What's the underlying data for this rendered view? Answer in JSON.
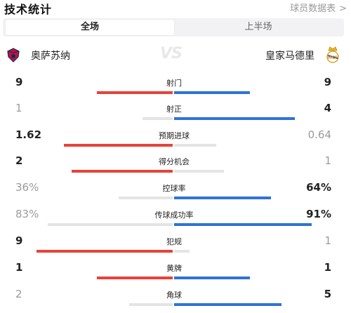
{
  "header": {
    "title": "技术统计",
    "link": "球员数据表",
    "link_arrow": ">"
  },
  "tabs": [
    {
      "label": "全场",
      "active": true
    },
    {
      "label": "上半场",
      "active": false
    }
  ],
  "teams": {
    "home": {
      "name": "奥萨苏纳",
      "logo_icon": "osasuna-crest-icon"
    },
    "vs": "VS",
    "away": {
      "name": "皇家马德里",
      "logo_icon": "real-madrid-crest-icon"
    }
  },
  "colors": {
    "home_bar": "#e8423a",
    "away_bar": "#2f73d6",
    "muted_bar": "#e4e4e6"
  },
  "stats": [
    {
      "label": "射门",
      "home": "9",
      "away": "9",
      "home_share": 0.5,
      "away_share": 0.5,
      "leader": "both"
    },
    {
      "label": "射正",
      "home": "1",
      "away": "4",
      "home_share": 0.2,
      "away_share": 0.8,
      "leader": "away"
    },
    {
      "label": "预期进球",
      "home": "1.62",
      "away": "0.64",
      "home_share": 0.72,
      "away_share": 0.28,
      "leader": "home"
    },
    {
      "label": "得分机会",
      "home": "2",
      "away": "1",
      "home_share": 0.67,
      "away_share": 0.33,
      "leader": "home"
    },
    {
      "label": "控球率",
      "home": "36%",
      "away": "64%",
      "home_share": 0.36,
      "away_share": 0.64,
      "leader": "away"
    },
    {
      "label": "传球成功率",
      "home": "83%",
      "away": "91%",
      "home_share": 0.83,
      "away_share": 0.91,
      "leader": "away"
    },
    {
      "label": "犯规",
      "home": "9",
      "away": "1",
      "home_share": 0.9,
      "away_share": 0.1,
      "leader": "home"
    },
    {
      "label": "黄牌",
      "home": "1",
      "away": "1",
      "home_share": 0.5,
      "away_share": 0.5,
      "leader": "both"
    },
    {
      "label": "角球",
      "home": "2",
      "away": "5",
      "home_share": 0.29,
      "away_share": 0.71,
      "leader": "away"
    }
  ]
}
